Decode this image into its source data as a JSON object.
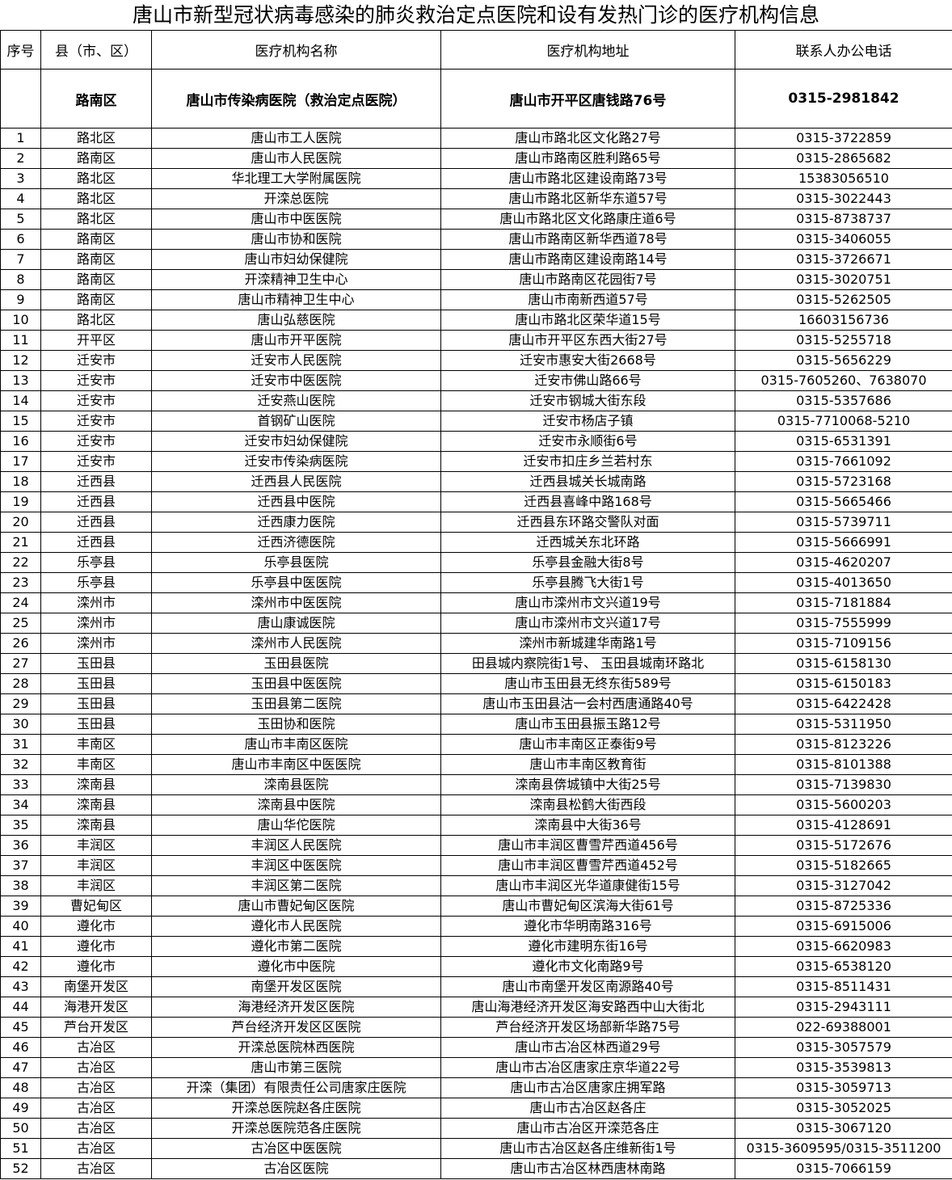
{
  "title": "唐山市新型冠状病毒感染的肺炎救治定点医院和设有发热门诊的医疗机构信息",
  "headers": [
    "序号",
    "县（市、区）",
    "医疗机构名称",
    "医疗机构地址",
    "联系人办公电话"
  ],
  "designated": [
    "",
    "路南区",
    "唐山市传染病医院（救治定点医院）",
    "唐山市开平区唐钱路76号",
    "0315-2981842"
  ],
  "rows": [
    [
      "1",
      "路北区",
      "唐山市工人医院",
      "唐山市路北区文化路27号",
      "0315-3722859"
    ],
    [
      "2",
      "路南区",
      "唐山市人民医院",
      "唐山市路南区胜利路65号",
      "0315-2865682"
    ],
    [
      "3",
      "路北区",
      "华北理工大学附属医院",
      "唐山市路北区建设南路73号",
      "15383056510"
    ],
    [
      "4",
      "路北区",
      "开滦总医院",
      "唐山市路北区新华东道57号",
      "0315-3022443"
    ],
    [
      "5",
      "路北区",
      "唐山市中医医院",
      "唐山市路北区文化路康庄道6号",
      "0315-8738737"
    ],
    [
      "6",
      "路南区",
      "唐山市协和医院",
      "唐山市路南区新华西道78号",
      "0315-3406055"
    ],
    [
      "7",
      "路南区",
      "唐山市妇幼保健院",
      "唐山市路南区建设南路14号",
      "0315-3726671"
    ],
    [
      "8",
      "路南区",
      "开滦精神卫生中心",
      "唐山市路南区花园街7号",
      "0315-3020751"
    ],
    [
      "9",
      "路南区",
      "唐山市精神卫生中心",
      "唐山市南新西道57号",
      "0315-5262505"
    ],
    [
      "10",
      "路北区",
      "唐山弘慈医院",
      "唐山市路北区荣华道15号",
      "16603156736"
    ],
    [
      "11",
      "开平区",
      "唐山市开平医院",
      "唐山市开平区东西大街27号",
      "0315-5255718"
    ],
    [
      "12",
      "迁安市",
      "迁安市人民医院",
      "迁安市惠安大街2668号",
      "0315-5656229"
    ],
    [
      "13",
      "迁安市",
      "迁安市中医医院",
      "迁安市佛山路66号",
      "0315-7605260、7638070"
    ],
    [
      "14",
      "迁安市",
      "迁安燕山医院",
      "迁安市钢城大街东段",
      "0315-5357686"
    ],
    [
      "15",
      "迁安市",
      "首钢矿山医院",
      "迁安市杨店子镇",
      "0315-7710068-5210"
    ],
    [
      "16",
      "迁安市",
      "迁安市妇幼保健院",
      "迁安市永顺街6号",
      "0315-6531391"
    ],
    [
      "17",
      "迁安市",
      "迁安市传染病医院",
      "迁安市扣庄乡兰若村东",
      "0315-7661092"
    ],
    [
      "18",
      "迁西县",
      "迁西县人民医院",
      "迁西县城关长城南路",
      "0315-5723168"
    ],
    [
      "19",
      "迁西县",
      "迁西县中医院",
      "迁西县喜峰中路168号",
      "0315-5665466"
    ],
    [
      "20",
      "迁西县",
      "迁西康力医院",
      "迁西县东环路交警队对面",
      "0315-5739711"
    ],
    [
      "21",
      "迁西县",
      "迁西济德医院",
      "迁西城关东北环路",
      "0315-5666991"
    ],
    [
      "22",
      "乐亭县",
      "乐亭县医院",
      "乐亭县金融大街8号",
      "0315-4620207"
    ],
    [
      "23",
      "乐亭县",
      "乐亭县中医医院",
      "乐亭县腾飞大街1号",
      "0315-4013650"
    ],
    [
      "24",
      "滦州市",
      "滦州市中医医院",
      "唐山市滦州市文兴道19号",
      "0315-7181884"
    ],
    [
      "25",
      "滦州市",
      "唐山康诚医院",
      "唐山市滦州市文兴道17号",
      "0315-7555999"
    ],
    [
      "26",
      "滦州市",
      "滦州市人民医院",
      "滦州市新城建华南路1号",
      "0315-7109156"
    ],
    [
      "27",
      "玉田县",
      "玉田县医院",
      "田县城内察院街1号、 玉田县城南环路北",
      "0315-6158130"
    ],
    [
      "28",
      "玉田县",
      "玉田县中医医院",
      "唐山市玉田县无终东街589号",
      "0315-6150183"
    ],
    [
      "29",
      "玉田县",
      "玉田县第二医院",
      "唐山市玉田县沽一会村西唐通路40号",
      "0315-6422428"
    ],
    [
      "30",
      "玉田县",
      "玉田协和医院",
      "唐山市玉田县振玉路12号",
      "0315-5311950"
    ],
    [
      "31",
      "丰南区",
      "唐山市丰南区医院",
      "唐山市丰南区正泰街9号",
      "0315-8123226"
    ],
    [
      "32",
      "丰南区",
      "唐山市丰南区中医医院",
      "唐山市丰南区教育街",
      "0315-8101388"
    ],
    [
      "33",
      "滦南县",
      "滦南县医院",
      "滦南县倴城镇中大街25号",
      "0315-7139830"
    ],
    [
      "34",
      "滦南县",
      "滦南县中医院",
      "滦南县松鹤大街西段",
      "0315-5600203"
    ],
    [
      "35",
      "滦南县",
      "唐山华佗医院",
      "滦南县中大街36号",
      "0315-4128691"
    ],
    [
      "36",
      "丰润区",
      "丰润区人民医院",
      "唐山市丰润区曹雪芹西道456号",
      "0315-5172676"
    ],
    [
      "37",
      "丰润区",
      "丰润区中医医院",
      "唐山市丰润区曹雪芹西道452号",
      "0315-5182665"
    ],
    [
      "38",
      "丰润区",
      "丰润区第二医院",
      "唐山市丰润区光华道康健街15号",
      "0315-3127042"
    ],
    [
      "39",
      "曹妃甸区",
      "唐山市曹妃甸区医院",
      "唐山市曹妃甸区滨海大街61号",
      "0315-8725336"
    ],
    [
      "40",
      "遵化市",
      "遵化市人民医院",
      "遵化市华明南路316号",
      "0315-6915006"
    ],
    [
      "41",
      "遵化市",
      "遵化市第二医院",
      "遵化市建明东街16号",
      "0315-6620983"
    ],
    [
      "42",
      "遵化市",
      "遵化市中医院",
      "遵化市文化南路9号",
      "0315-6538120"
    ],
    [
      "43",
      "南堡开发区",
      "南堡开发区医院",
      "唐山市南堡开发区南源路40号",
      "0315-8511431"
    ],
    [
      "44",
      "海港开发区",
      "海港经济开发区医院",
      "唐山海港经济开发区海安路西中山大街北",
      "0315-2943111"
    ],
    [
      "45",
      "芦台开发区",
      "芦台经济开发区区医院",
      "芦台经济开发区场部新华路75号",
      "022-69388001"
    ],
    [
      "46",
      "古冶区",
      "开滦总医院林西医院",
      "唐山市古冶区林西道29号",
      "0315-3057579"
    ],
    [
      "47",
      "古冶区",
      "唐山市第三医院",
      "唐山市古冶区唐家庄京华道22号",
      "0315-3539813"
    ],
    [
      "48",
      "古冶区",
      "开滦（集团）有限责任公司唐家庄医院",
      "唐山市古冶区唐家庄拥军路",
      "0315-3059713"
    ],
    [
      "49",
      "古冶区",
      "开滦总医院赵各庄医院",
      "唐山市古冶区赵各庄",
      "0315-3052025"
    ],
    [
      "50",
      "古冶区",
      "开滦总医院范各庄医院",
      "唐山市古冶区开滦范各庄",
      "0315-3067120"
    ],
    [
      "51",
      "古冶区",
      "古冶区中医医院",
      "唐山市古冶区赵各庄维新街1号",
      "0315-3609595/0315-3511200"
    ],
    [
      "52",
      "古冶区",
      "古冶区医院",
      "唐山市古冶区林西唐林南路",
      "0315-7066159"
    ]
  ]
}
